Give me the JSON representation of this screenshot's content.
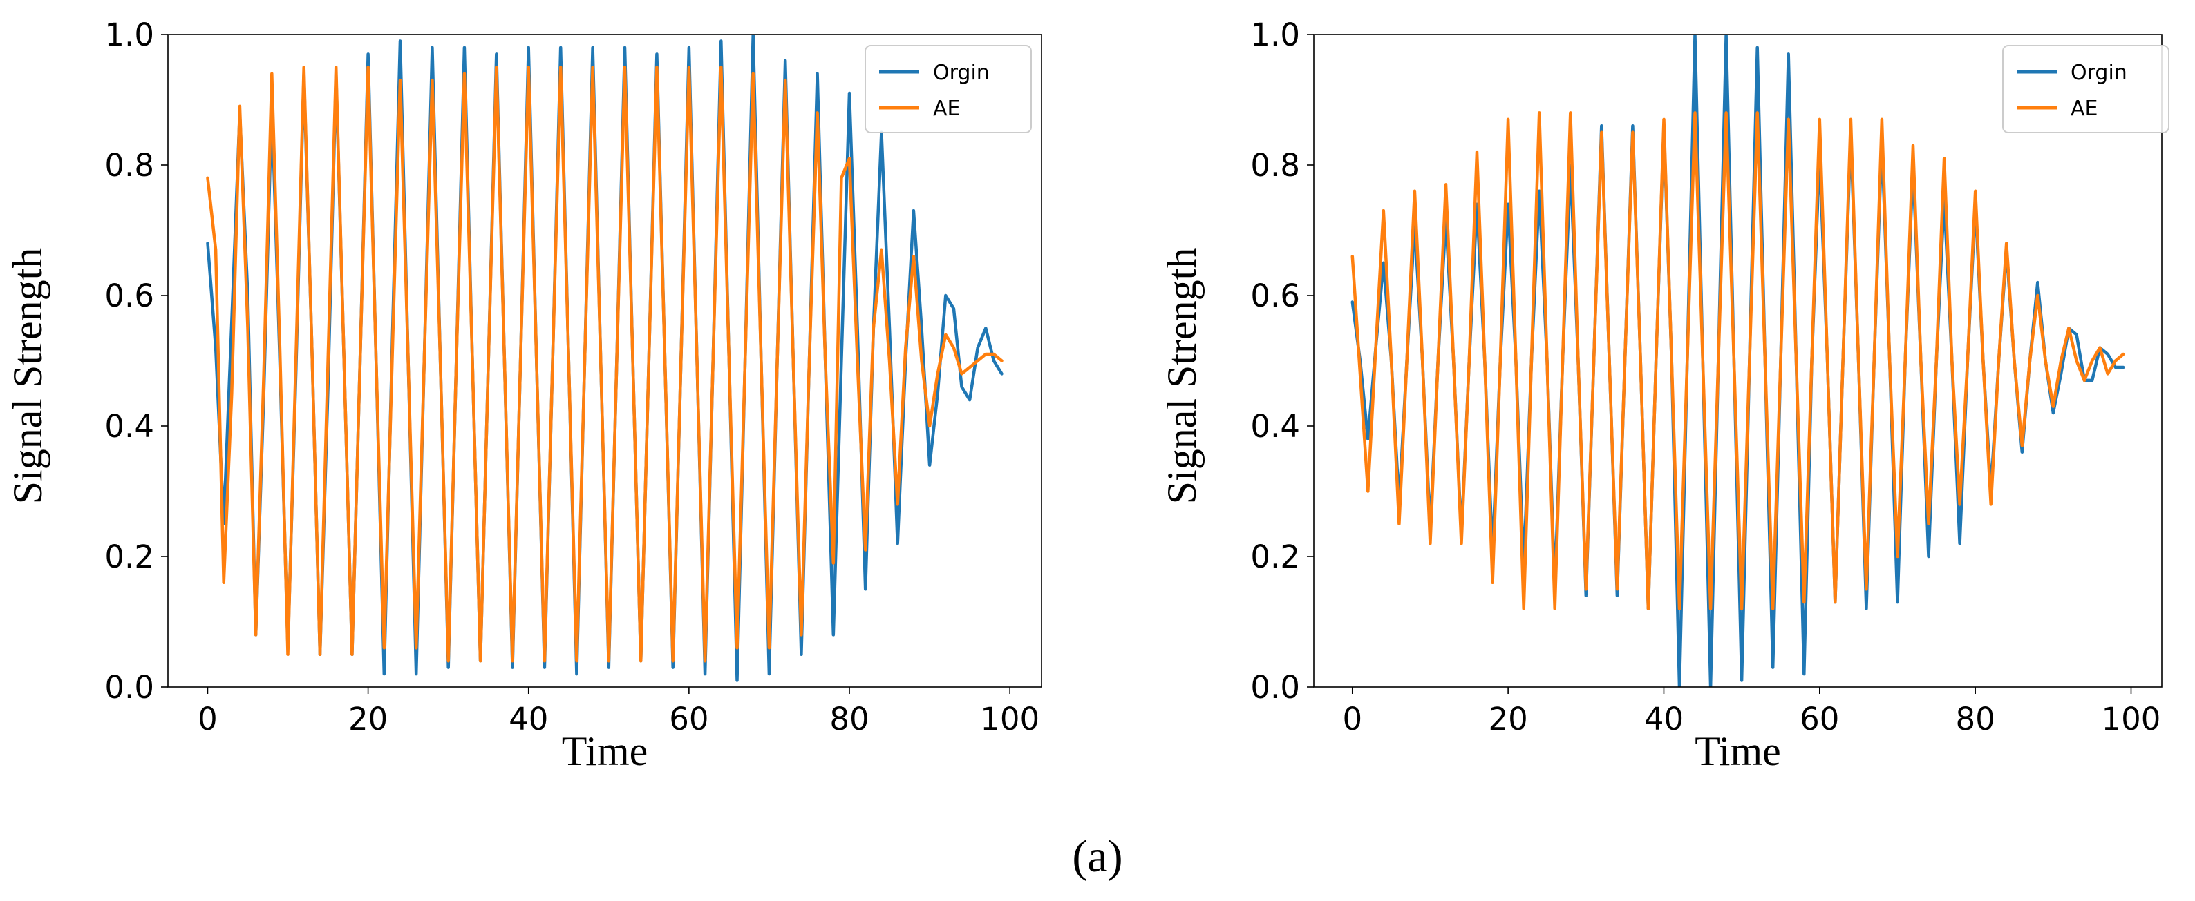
{
  "caption": "(a)",
  "colors": {
    "orgin": "#1f77b4",
    "ae": "#ff7f0e"
  },
  "chart_data": [
    {
      "type": "line",
      "title": "",
      "xlabel": "Time",
      "ylabel": "Signal Strength",
      "xlim": [
        -4.95,
        103.95
      ],
      "ylim": [
        0,
        1
      ],
      "xticks": [
        0,
        20,
        40,
        60,
        80,
        100
      ],
      "xtick_labels": [
        "0",
        "20",
        "40",
        "60",
        "80",
        "100"
      ],
      "yticks": [
        0.0,
        0.2,
        0.4,
        0.6,
        0.8,
        1.0
      ],
      "ytick_labels": [
        "0.0",
        "0.2",
        "0.4",
        "0.6",
        "0.8",
        "1.0"
      ],
      "legend": {
        "position": "top-right"
      },
      "series": [
        {
          "name": "Orgin",
          "color": "#1f77b4",
          "x": [
            0,
            1,
            2,
            3,
            4,
            5,
            6,
            7,
            8,
            9,
            10,
            11,
            12,
            13,
            14,
            15,
            16,
            17,
            18,
            19,
            20,
            21,
            22,
            23,
            24,
            25,
            26,
            27,
            28,
            29,
            30,
            31,
            32,
            33,
            34,
            35,
            36,
            37,
            38,
            39,
            40,
            41,
            42,
            43,
            44,
            45,
            46,
            47,
            48,
            49,
            50,
            51,
            52,
            53,
            54,
            55,
            56,
            57,
            58,
            59,
            60,
            61,
            62,
            63,
            64,
            65,
            66,
            67,
            68,
            69,
            70,
            71,
            72,
            73,
            74,
            75,
            76,
            77,
            78,
            79,
            80,
            81,
            82,
            83,
            84,
            85,
            86,
            87,
            88,
            89,
            90,
            91,
            92,
            93,
            94,
            95,
            96,
            97,
            98,
            99
          ],
          "values": [
            0.68,
            0.52,
            0.25,
            0.56,
            0.88,
            0.6,
            0.08,
            0.45,
            0.9,
            0.5,
            0.06,
            0.48,
            0.94,
            0.52,
            0.05,
            0.46,
            0.94,
            0.5,
            0.05,
            0.5,
            0.97,
            0.5,
            0.02,
            0.52,
            0.99,
            0.5,
            0.02,
            0.5,
            0.98,
            0.5,
            0.03,
            0.5,
            0.98,
            0.5,
            0.04,
            0.5,
            0.97,
            0.5,
            0.03,
            0.5,
            0.98,
            0.5,
            0.03,
            0.5,
            0.98,
            0.5,
            0.02,
            0.5,
            0.98,
            0.5,
            0.03,
            0.5,
            0.98,
            0.5,
            0.04,
            0.5,
            0.97,
            0.5,
            0.03,
            0.5,
            0.98,
            0.5,
            0.02,
            0.5,
            0.99,
            0.5,
            0.01,
            0.5,
            1.0,
            0.5,
            0.02,
            0.5,
            0.96,
            0.5,
            0.05,
            0.5,
            0.94,
            0.5,
            0.08,
            0.5,
            0.91,
            0.55,
            0.15,
            0.55,
            0.85,
            0.55,
            0.22,
            0.5,
            0.73,
            0.55,
            0.34,
            0.45,
            0.6,
            0.58,
            0.46,
            0.44,
            0.52,
            0.55,
            0.5,
            0.48
          ]
        },
        {
          "name": "AE",
          "color": "#ff7f0e",
          "x": [
            0,
            1,
            2,
            3,
            4,
            5,
            6,
            7,
            8,
            9,
            10,
            11,
            12,
            13,
            14,
            15,
            16,
            17,
            18,
            19,
            20,
            21,
            22,
            23,
            24,
            25,
            26,
            27,
            28,
            29,
            30,
            31,
            32,
            33,
            34,
            35,
            36,
            37,
            38,
            39,
            40,
            41,
            42,
            43,
            44,
            45,
            46,
            47,
            48,
            49,
            50,
            51,
            52,
            53,
            54,
            55,
            56,
            57,
            58,
            59,
            60,
            61,
            62,
            63,
            64,
            65,
            66,
            67,
            68,
            69,
            70,
            71,
            72,
            73,
            74,
            75,
            76,
            77,
            78,
            79,
            80,
            81,
            82,
            83,
            84,
            85,
            86,
            87,
            88,
            89,
            90,
            91,
            92,
            93,
            94,
            95,
            96,
            97,
            98,
            99
          ],
          "values": [
            0.78,
            0.67,
            0.16,
            0.45,
            0.89,
            0.55,
            0.08,
            0.48,
            0.94,
            0.52,
            0.05,
            0.5,
            0.95,
            0.52,
            0.05,
            0.5,
            0.95,
            0.5,
            0.05,
            0.5,
            0.95,
            0.5,
            0.06,
            0.5,
            0.93,
            0.5,
            0.06,
            0.5,
            0.93,
            0.5,
            0.04,
            0.5,
            0.94,
            0.5,
            0.04,
            0.5,
            0.95,
            0.5,
            0.04,
            0.5,
            0.95,
            0.5,
            0.04,
            0.5,
            0.95,
            0.5,
            0.04,
            0.5,
            0.95,
            0.5,
            0.04,
            0.5,
            0.95,
            0.5,
            0.04,
            0.5,
            0.95,
            0.5,
            0.04,
            0.5,
            0.95,
            0.5,
            0.04,
            0.5,
            0.95,
            0.5,
            0.06,
            0.5,
            0.94,
            0.5,
            0.06,
            0.5,
            0.93,
            0.5,
            0.08,
            0.5,
            0.88,
            0.5,
            0.19,
            0.78,
            0.81,
            0.5,
            0.21,
            0.55,
            0.67,
            0.5,
            0.28,
            0.52,
            0.66,
            0.5,
            0.4,
            0.48,
            0.54,
            0.52,
            0.48,
            0.49,
            0.5,
            0.51,
            0.51,
            0.5
          ]
        }
      ]
    },
    {
      "type": "line",
      "title": "",
      "xlabel": "Time",
      "ylabel": "Signal Strength",
      "xlim": [
        -4.95,
        103.95
      ],
      "ylim": [
        0,
        1
      ],
      "xticks": [
        0,
        20,
        40,
        60,
        80,
        100
      ],
      "xtick_labels": [
        "0",
        "20",
        "40",
        "60",
        "80",
        "100"
      ],
      "yticks": [
        0.0,
        0.2,
        0.4,
        0.6,
        0.8,
        1.0
      ],
      "ytick_labels": [
        "0.0",
        "0.2",
        "0.4",
        "0.6",
        "0.8",
        "1.0"
      ],
      "legend": {
        "position": "top-right"
      },
      "series": [
        {
          "name": "Orgin",
          "color": "#1f77b4",
          "x": [
            0,
            1,
            2,
            3,
            4,
            5,
            6,
            7,
            8,
            9,
            10,
            11,
            12,
            13,
            14,
            15,
            16,
            17,
            18,
            19,
            20,
            21,
            22,
            23,
            24,
            25,
            26,
            27,
            28,
            29,
            30,
            31,
            32,
            33,
            34,
            35,
            36,
            37,
            38,
            39,
            40,
            41,
            42,
            43,
            44,
            45,
            46,
            47,
            48,
            49,
            50,
            51,
            52,
            53,
            54,
            55,
            56,
            57,
            58,
            59,
            60,
            61,
            62,
            63,
            64,
            65,
            66,
            67,
            68,
            69,
            70,
            71,
            72,
            73,
            74,
            75,
            76,
            77,
            78,
            79,
            80,
            81,
            82,
            83,
            84,
            85,
            86,
            87,
            88,
            89,
            90,
            91,
            92,
            93,
            94,
            95,
            96,
            97,
            98,
            99
          ],
          "values": [
            0.59,
            0.5,
            0.38,
            0.52,
            0.65,
            0.5,
            0.28,
            0.5,
            0.71,
            0.5,
            0.24,
            0.5,
            0.72,
            0.5,
            0.23,
            0.5,
            0.74,
            0.5,
            0.2,
            0.5,
            0.74,
            0.5,
            0.18,
            0.5,
            0.76,
            0.5,
            0.15,
            0.5,
            0.8,
            0.5,
            0.14,
            0.5,
            0.86,
            0.5,
            0.14,
            0.5,
            0.86,
            0.5,
            0.12,
            0.5,
            0.86,
            0.5,
            0.0,
            0.5,
            1.0,
            0.5,
            0.0,
            0.5,
            1.0,
            0.5,
            0.01,
            0.5,
            0.98,
            0.5,
            0.03,
            0.5,
            0.97,
            0.5,
            0.02,
            0.5,
            0.82,
            0.5,
            0.13,
            0.5,
            0.85,
            0.5,
            0.12,
            0.5,
            0.84,
            0.5,
            0.13,
            0.5,
            0.8,
            0.5,
            0.2,
            0.5,
            0.75,
            0.5,
            0.22,
            0.5,
            0.74,
            0.5,
            0.3,
            0.5,
            0.67,
            0.5,
            0.36,
            0.5,
            0.62,
            0.5,
            0.42,
            0.48,
            0.55,
            0.54,
            0.47,
            0.47,
            0.52,
            0.51,
            0.49,
            0.49
          ]
        },
        {
          "name": "AE",
          "color": "#ff7f0e",
          "x": [
            0,
            1,
            2,
            3,
            4,
            5,
            6,
            7,
            8,
            9,
            10,
            11,
            12,
            13,
            14,
            15,
            16,
            17,
            18,
            19,
            20,
            21,
            22,
            23,
            24,
            25,
            26,
            27,
            28,
            29,
            30,
            31,
            32,
            33,
            34,
            35,
            36,
            37,
            38,
            39,
            40,
            41,
            42,
            43,
            44,
            45,
            46,
            47,
            48,
            49,
            50,
            51,
            52,
            53,
            54,
            55,
            56,
            57,
            58,
            59,
            60,
            61,
            62,
            63,
            64,
            65,
            66,
            67,
            68,
            69,
            70,
            71,
            72,
            73,
            74,
            75,
            76,
            77,
            78,
            79,
            80,
            81,
            82,
            83,
            84,
            85,
            86,
            87,
            88,
            89,
            90,
            91,
            92,
            93,
            94,
            95,
            96,
            97,
            98,
            99
          ],
          "values": [
            0.66,
            0.48,
            0.3,
            0.52,
            0.73,
            0.5,
            0.25,
            0.5,
            0.76,
            0.5,
            0.22,
            0.5,
            0.77,
            0.5,
            0.22,
            0.5,
            0.82,
            0.5,
            0.16,
            0.5,
            0.87,
            0.5,
            0.12,
            0.5,
            0.88,
            0.5,
            0.12,
            0.5,
            0.88,
            0.5,
            0.15,
            0.5,
            0.85,
            0.5,
            0.15,
            0.5,
            0.85,
            0.5,
            0.12,
            0.5,
            0.87,
            0.5,
            0.12,
            0.5,
            0.88,
            0.5,
            0.12,
            0.5,
            0.88,
            0.5,
            0.12,
            0.5,
            0.88,
            0.5,
            0.12,
            0.5,
            0.87,
            0.5,
            0.13,
            0.5,
            0.87,
            0.5,
            0.13,
            0.5,
            0.87,
            0.5,
            0.15,
            0.5,
            0.87,
            0.5,
            0.2,
            0.5,
            0.83,
            0.5,
            0.25,
            0.5,
            0.81,
            0.5,
            0.28,
            0.5,
            0.76,
            0.5,
            0.28,
            0.5,
            0.68,
            0.5,
            0.37,
            0.5,
            0.6,
            0.5,
            0.43,
            0.5,
            0.55,
            0.5,
            0.47,
            0.5,
            0.52,
            0.48,
            0.5,
            0.51
          ]
        }
      ]
    }
  ]
}
